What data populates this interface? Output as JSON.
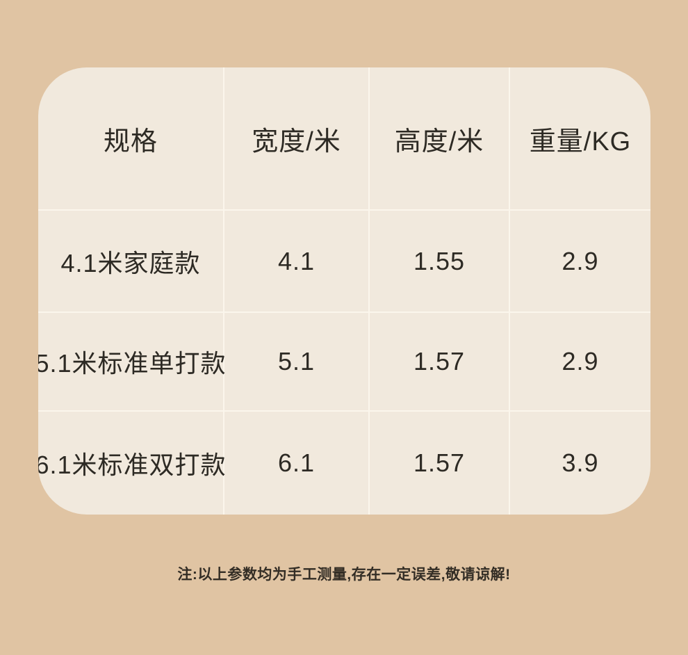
{
  "colors": {
    "page_background": "#e0c4a3",
    "card_background": "#f1e9dd",
    "divider": "#fbf6ec",
    "text": "#2d2a24"
  },
  "table": {
    "headers": [
      "规格",
      "宽度/米",
      "高度/米",
      "重量/KG"
    ],
    "rows": [
      {
        "spec": "4.1米家庭款",
        "width_m": "4.1",
        "height_m": "1.55",
        "weight_kg": "2.9"
      },
      {
        "spec": "5.1米标准单打款",
        "width_m": "5.1",
        "height_m": "1.57",
        "weight_kg": "2.9"
      },
      {
        "spec": "6.1米标准双打款",
        "width_m": "6.1",
        "height_m": "1.57",
        "weight_kg": "3.9"
      }
    ]
  },
  "note": "注:以上参数均为手工测量,存在一定误差,敬请谅解!"
}
